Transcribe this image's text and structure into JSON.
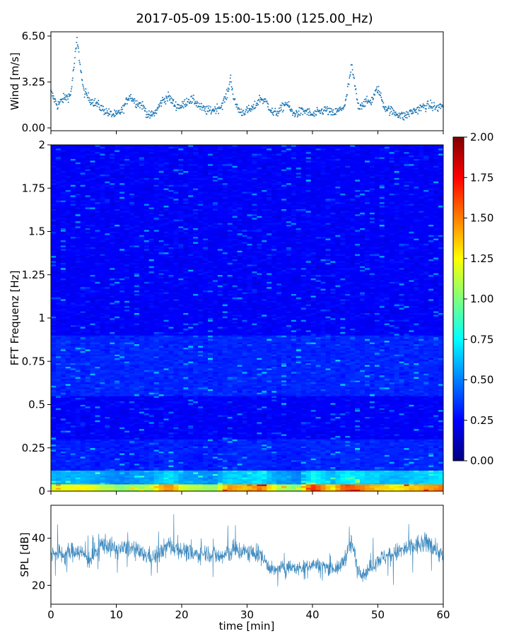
{
  "title": "2017-05-09 15:00-15:00 (125.00_Hz)",
  "colors": {
    "wind": "#1f77b4",
    "spl": "#1f77b4",
    "cmap": [
      "#00007f",
      "#0000ff",
      "#007fff",
      "#00ffff",
      "#7fff7f",
      "#ffff00",
      "#ff7f00",
      "#ff0000",
      "#7f0000"
    ]
  },
  "chart_data": [
    {
      "type": "scatter",
      "panel": "wind",
      "ylabel": "Wind [m/s]",
      "ylim": [
        0,
        6.5
      ],
      "xlim": [
        0,
        60
      ],
      "yticks": [
        "0.00",
        "3.25",
        "6.50"
      ],
      "series": [
        {
          "x": [
            0,
            1,
            2,
            3,
            3.5,
            4,
            5,
            6,
            7,
            8,
            9,
            10,
            11,
            12,
            13,
            14,
            15,
            16,
            17,
            18,
            19,
            20,
            21,
            22,
            23,
            24,
            25,
            26,
            27,
            27.5,
            28,
            29,
            30,
            31,
            32,
            33,
            34,
            35,
            36,
            37,
            38,
            39,
            40,
            41,
            42,
            43,
            44,
            45,
            46,
            47,
            48,
            49,
            50,
            51,
            52,
            53,
            54,
            55,
            56,
            57,
            58,
            59,
            60
          ],
          "y": [
            2.5,
            1.6,
            2.1,
            2.3,
            4.2,
            6.2,
            2.6,
            2.0,
            1.7,
            1.3,
            1.0,
            0.9,
            1.3,
            2.3,
            1.8,
            1.6,
            0.8,
            1.1,
            1.9,
            2.2,
            1.6,
            1.5,
            2.0,
            1.9,
            1.4,
            1.2,
            1.3,
            1.5,
            2.4,
            3.6,
            1.9,
            1.1,
            1.2,
            1.4,
            2.1,
            1.8,
            1.0,
            1.2,
            1.8,
            1.0,
            1.1,
            1.2,
            0.9,
            1.1,
            1.3,
            1.0,
            1.2,
            1.6,
            4.4,
            1.5,
            1.8,
            1.9,
            2.8,
            1.5,
            1.2,
            1.0,
            0.8,
            1.1,
            1.3,
            1.5,
            1.6,
            1.4,
            1.6
          ]
        }
      ]
    },
    {
      "type": "heatmap",
      "panel": "spectrogram",
      "ylabel": "FFT Frequenz [Hz]",
      "xlim": [
        0,
        60
      ],
      "ylim": [
        0,
        2
      ],
      "yticks": [
        "0",
        "0.25",
        "0.5",
        "0.75",
        "1",
        "1.25",
        "1.5",
        "1.75",
        "2"
      ],
      "colorbar": {
        "range": [
          0,
          2
        ],
        "ticks": [
          "0.00",
          "0.25",
          "0.50",
          "0.75",
          "1.00",
          "1.25",
          "1.50",
          "1.75",
          "2.00"
        ]
      },
      "band_time": [
        0,
        5,
        10,
        15,
        18,
        20,
        25,
        27,
        30,
        32,
        35,
        38,
        40,
        43,
        45,
        47,
        50,
        53,
        55,
        58,
        60
      ],
      "low_freq_energy": [
        1.1,
        1.2,
        0.9,
        1.0,
        1.5,
        1.1,
        0.9,
        1.4,
        1.3,
        1.5,
        1.0,
        0.9,
        1.7,
        1.2,
        1.6,
        1.5,
        1.3,
        1.2,
        1.3,
        1.4,
        1.5
      ]
    },
    {
      "type": "line",
      "panel": "spl",
      "xlabel": "time [min]",
      "ylabel": "SPL [dB]",
      "xlim": [
        0,
        60
      ],
      "ylim": [
        12,
        54
      ],
      "xticks": [
        "0",
        "10",
        "20",
        "30",
        "40",
        "50",
        "60"
      ],
      "yticks": [
        "20",
        "40"
      ],
      "series": [
        {
          "x": [
            0,
            2,
            4,
            6,
            8,
            10,
            12,
            14,
            16,
            18,
            20,
            22,
            24,
            26,
            28,
            30,
            32,
            34,
            36,
            38,
            40,
            42,
            44,
            45,
            46,
            47,
            48,
            50,
            52,
            54,
            56,
            58,
            60
          ],
          "y": [
            34,
            33,
            35,
            31,
            38,
            35,
            36,
            33,
            32,
            37,
            35,
            33,
            34,
            32,
            35,
            34,
            33,
            26,
            28,
            27,
            29,
            28,
            27,
            32,
            38,
            27,
            25,
            31,
            33,
            35,
            37,
            38,
            32
          ],
          "spread": [
            5,
            6,
            5,
            6,
            6,
            5,
            5,
            5,
            5,
            6,
            5,
            5,
            5,
            6,
            6,
            5,
            5,
            4,
            4,
            4,
            4,
            4,
            4,
            5,
            6,
            4,
            4,
            5,
            5,
            6,
            6,
            6,
            5
          ]
        }
      ]
    }
  ]
}
